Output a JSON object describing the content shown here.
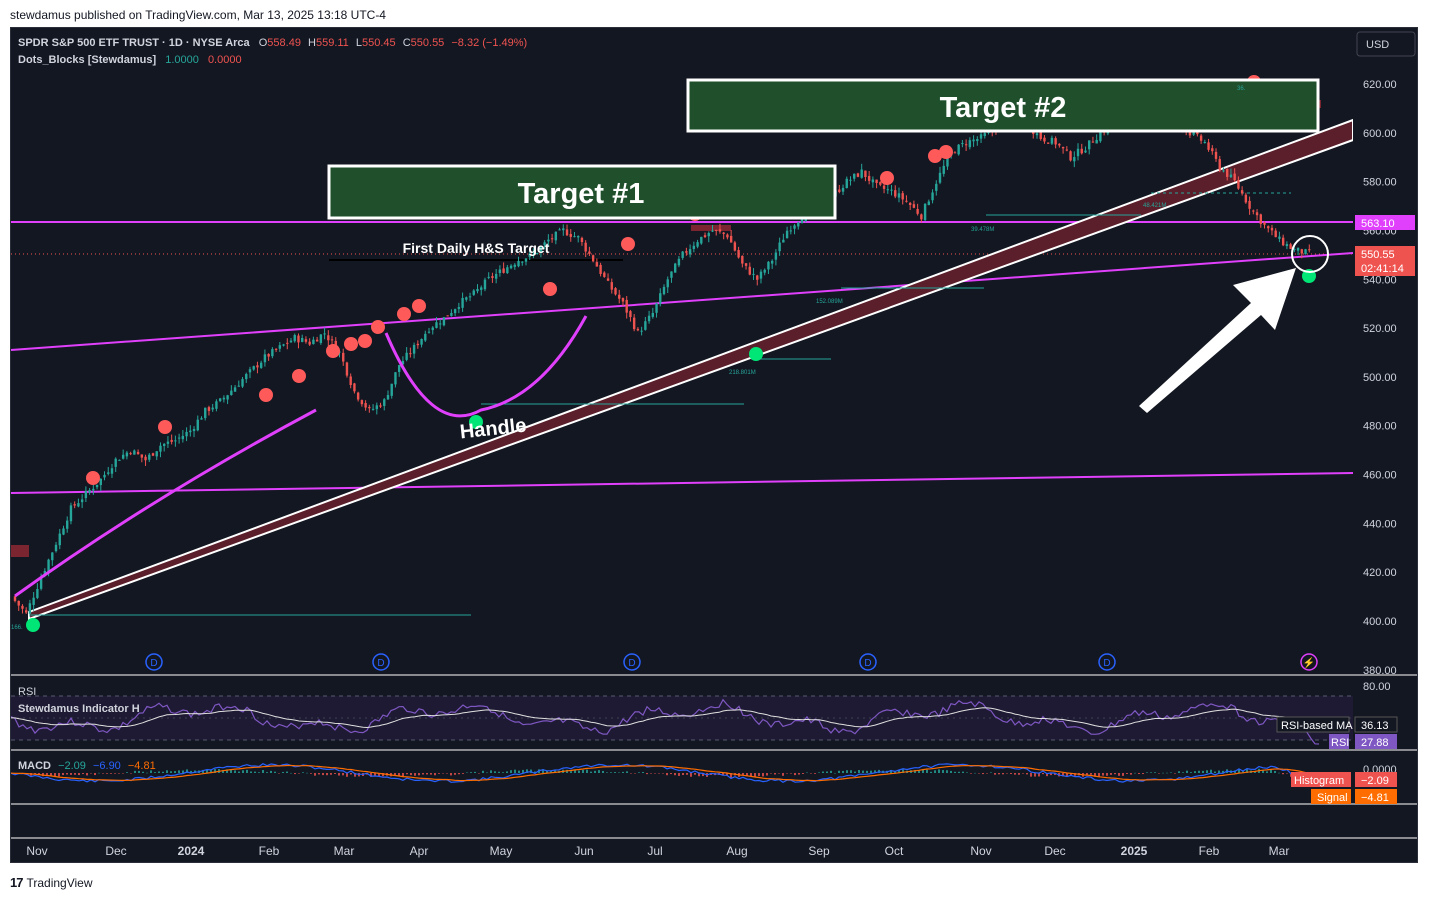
{
  "header": {
    "published": "stewdamus published on TradingView.com, Mar 13, 2025 13:18 UTC-4"
  },
  "footer": {
    "brand": "TradingView",
    "logo_glyph": "17"
  },
  "legend": {
    "symbol": "SPDR S&P 500 ETF TRUST · 1D · NYSE Arca",
    "o_label": "O",
    "o": "558.49",
    "h_label": "H",
    "h": "559.11",
    "l_label": "L",
    "l": "550.45",
    "c_label": "C",
    "c": "550.55",
    "change": "−8.32 (−1.49%)",
    "indicator": "Dots_Blocks [Stewdamus]",
    "ind_v1": "1.0000",
    "ind_v2": "0.0000"
  },
  "currency_button": "USD",
  "annotations": {
    "target1": "Target #1",
    "target2": "Target #2",
    "hs_target": "First Daily H&S Target",
    "handle": "Handle"
  },
  "price_axis": {
    "ticks": [
      "620.00",
      "600.00",
      "580.00",
      "560.00",
      "540.00",
      "520.00",
      "500.00",
      "480.00",
      "460.00",
      "440.00",
      "420.00",
      "400.00",
      "380.00"
    ],
    "label_resistance": "563.10",
    "label_last": "550.55",
    "label_countdown": "02:41:14"
  },
  "time_axis": {
    "ticks": [
      "Nov",
      "Dec",
      "2024",
      "Feb",
      "Mar",
      "Apr",
      "May",
      "Jun",
      "Jul",
      "Aug",
      "Sep",
      "Oct",
      "Nov",
      "Dec",
      "2025",
      "Feb",
      "Mar"
    ]
  },
  "volume_labels": [
    "166.",
    "152.089M",
    "218.801M",
    "39.478M",
    "48.421M",
    "36."
  ],
  "dividend_marker": "D",
  "colors": {
    "background": "#131722",
    "up": "#26a69a",
    "down": "#ef5350",
    "magenta": "#e040fb",
    "target_box": "#1f4f2b",
    "channel": "#5a1f2a",
    "rsi_line": "#7e57c2",
    "macd_line": "#2962ff",
    "signal_line": "#ff6d00"
  },
  "rsi_panel": {
    "title": "RSI",
    "indicator": "Stewdamus Indicator H",
    "axis_label": "80.00",
    "ma_label": "RSI-based MA",
    "ma_value": "36.13",
    "rsi_label": "RSI",
    "rsi_value": "27.88"
  },
  "macd_panel": {
    "title": "MACD",
    "v1": "−2.09",
    "v2": "−6.90",
    "v3": "−4.81",
    "axis_label": "0.0000",
    "hist_label": "Histogram",
    "hist_value": "−2.09",
    "signal_label": "Signal",
    "signal_value": "−4.81"
  },
  "chart_data": {
    "type": "candlestick",
    "ylim": [
      380,
      625
    ],
    "series": [
      {
        "values": [
          410,
          403,
          418,
          432,
          446,
          452,
          458,
          466,
          470,
          466,
          472,
          474,
          478,
          486,
          490,
          496,
          502,
          508,
          512,
          516,
          514,
          518,
          510,
          494,
          486,
          490,
          505,
          512,
          520,
          524,
          530,
          534,
          540,
          544,
          548,
          550,
          556,
          560,
          557,
          548,
          538,
          530,
          518,
          526,
          540,
          550,
          556,
          560,
          558,
          546,
          540,
          548,
          560,
          566,
          570,
          574,
          580,
          584,
          578,
          576,
          572,
          566,
          580,
          592,
          596,
          598,
          602,
          606,
          604,
          598,
          596,
          590,
          594,
          600,
          604,
          608,
          608,
          612,
          606,
          600,
          596,
          586,
          580,
          570,
          562,
          556,
          552,
          550.55
        ]
      }
    ]
  }
}
